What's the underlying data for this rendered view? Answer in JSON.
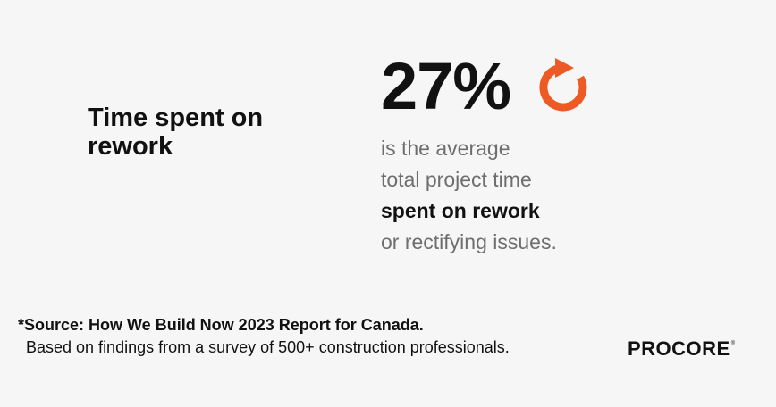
{
  "heading": {
    "line1": "Time spent on",
    "line2": "rework"
  },
  "stat": {
    "value": "27%",
    "icon": "rework-arrow-icon",
    "icon_color": "#ee5a24"
  },
  "description": {
    "line1": "is the average",
    "line2": "total project time",
    "line3": "spent on rework",
    "line4": "or rectifying issues."
  },
  "source": {
    "title": "*Source: How We Build Now 2023 Report for Canada.",
    "detail": "Based on findings from a survey of 500+ construction professionals."
  },
  "logo": {
    "text": "PROCORE",
    "mark": "®"
  },
  "colors": {
    "background": "#f6f6f7",
    "text_dark": "#111111",
    "text_muted": "#6e6e6e",
    "accent": "#ee5a24"
  }
}
